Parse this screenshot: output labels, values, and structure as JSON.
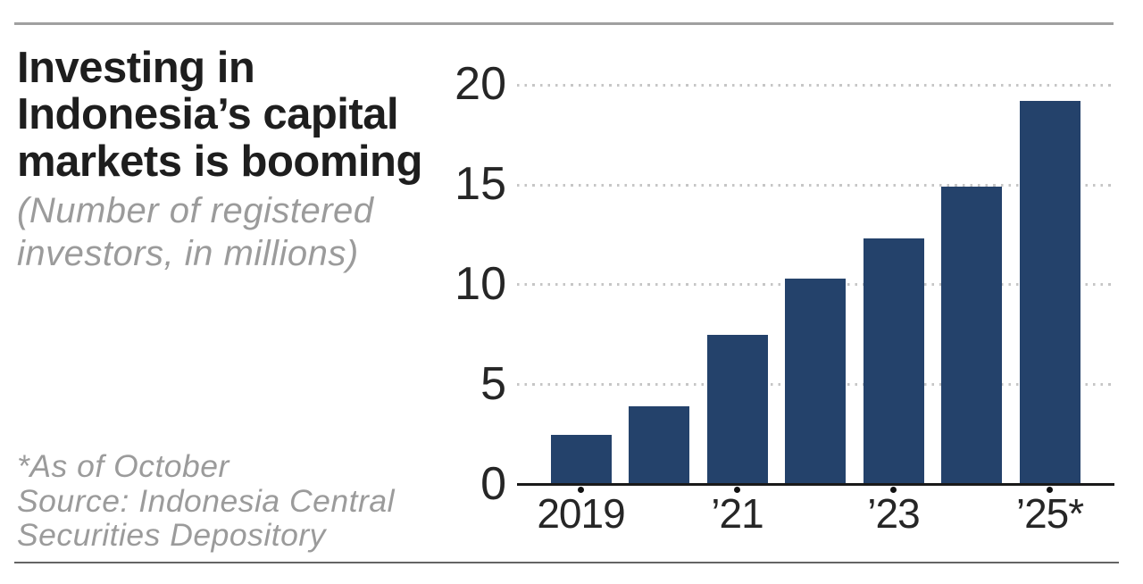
{
  "page": {
    "background_color": "#ffffff",
    "top_rule_color": "#a0a0a0",
    "bottom_rule_color": "#646464"
  },
  "header": {
    "title": "Investing in Indonesia’s capital markets is booming",
    "title_lines": [
      "Investing in",
      "Indonesia’s capital",
      "markets is booming"
    ],
    "subtitle": "(Number of registered investors, in millions)",
    "subtitle_lines": [
      "(Number of registered",
      "investors, in millions)"
    ]
  },
  "footnote": {
    "lines": [
      "*As of October",
      "Source: Indonesia Central",
      "Securities Depository"
    ]
  },
  "chart_data": {
    "type": "bar",
    "title": "Investing in Indonesia’s capital markets is booming",
    "subtitle": "(Number of registered investors, in millions)",
    "source_note": "*As of October Source: Indonesia Central Securities Depository",
    "categories": [
      "2019",
      "2020",
      "2021",
      "2022",
      "2023",
      "2024",
      "2025*"
    ],
    "values": [
      2.5,
      3.9,
      7.5,
      10.3,
      12.3,
      14.9,
      19.2
    ],
    "x_tick_labels": [
      {
        "index": 0,
        "label": "2019"
      },
      {
        "index": 2,
        "label": "’21"
      },
      {
        "index": 4,
        "label": "’23"
      },
      {
        "index": 6,
        "label": "’25*"
      }
    ],
    "y_ticks": [
      0,
      5,
      10,
      15,
      20
    ],
    "ylim": [
      0,
      20
    ],
    "xlabel": "",
    "ylabel": "",
    "grid": "horizontal-dotted",
    "legend": "none",
    "bar_color": "#24426b",
    "axis_color": "#1a1a1a",
    "gridline_color": "#c6c6c6",
    "tick_label_color": "#262626"
  }
}
